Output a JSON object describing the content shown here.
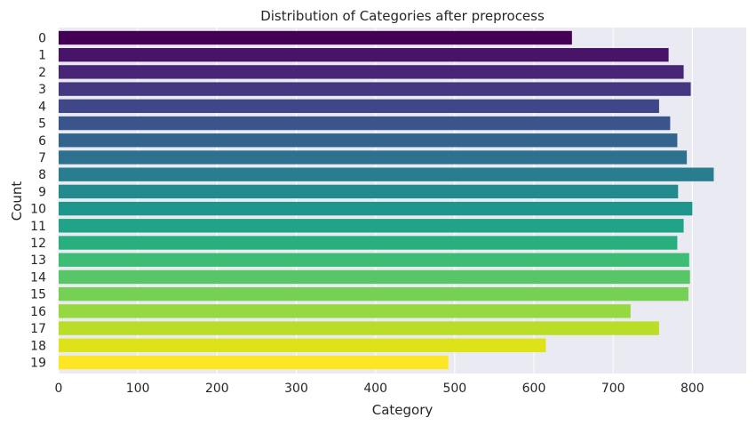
{
  "chart_data": {
    "type": "bar",
    "orientation": "horizontal",
    "title": "Distribution of Categories after preprocess",
    "xlabel": "Category",
    "ylabel": "Count",
    "categories": [
      "0",
      "1",
      "2",
      "3",
      "4",
      "5",
      "6",
      "7",
      "8",
      "9",
      "10",
      "11",
      "12",
      "13",
      "14",
      "15",
      "16",
      "17",
      "18",
      "19"
    ],
    "values": [
      648,
      770,
      789,
      798,
      758,
      772,
      781,
      793,
      827,
      782,
      800,
      789,
      781,
      796,
      797,
      795,
      722,
      758,
      615,
      492
    ],
    "xticks": [
      0,
      100,
      200,
      300,
      400,
      500,
      600,
      700,
      800
    ],
    "xlim": [
      0,
      868
    ],
    "grid": true,
    "background": "#eaeaf2",
    "palette": "viridis",
    "colors": [
      "#440154",
      "#481467",
      "#482576",
      "#453781",
      "#3f4788",
      "#39558c",
      "#32648e",
      "#2d718e",
      "#287d8e",
      "#238a8d",
      "#1f968b",
      "#20a386",
      "#29af7f",
      "#3dbc74",
      "#56c667",
      "#75d054",
      "#95d840",
      "#bade28",
      "#dde318",
      "#fde725"
    ]
  }
}
